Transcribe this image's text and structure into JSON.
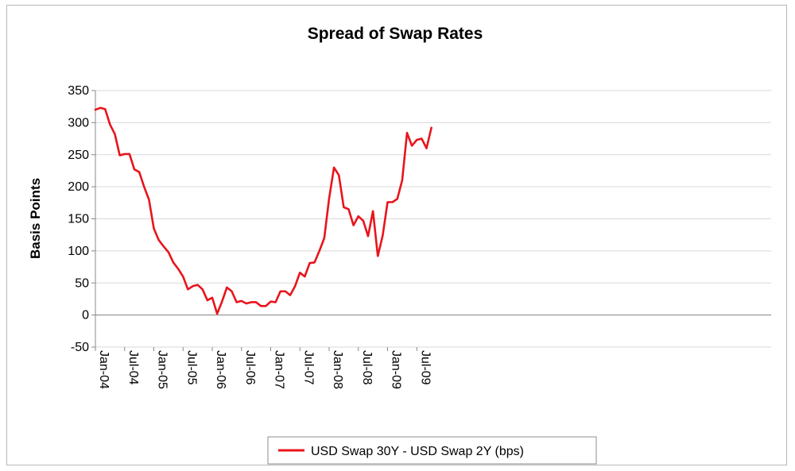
{
  "chart_data": {
    "type": "line",
    "title": "Spread of Swap Rates",
    "ylabel": "Basis Points",
    "xlabel": "",
    "ylim": [
      -50,
      350
    ],
    "yticks": [
      -50,
      0,
      50,
      100,
      150,
      200,
      250,
      300,
      350
    ],
    "xticks": [
      "Jan-04",
      "Jul-04",
      "Jan-05",
      "Jul-05",
      "Jan-06",
      "Jul-06",
      "Jan-07",
      "Jul-07",
      "Jan-08",
      "Jul-08",
      "Jan-09",
      "Jul-09"
    ],
    "grid": true,
    "legend_position": "bottom",
    "series": [
      {
        "name": "USD Swap 30Y - USD Swap 2Y (bps)",
        "color": "#e8141c",
        "x": [
          "Jan-04",
          "Feb-04",
          "Mar-04",
          "Apr-04",
          "May-04",
          "Jun-04",
          "Jul-04",
          "Aug-04",
          "Sep-04",
          "Oct-04",
          "Nov-04",
          "Dec-04",
          "Jan-05",
          "Feb-05",
          "Mar-05",
          "Apr-05",
          "May-05",
          "Jun-05",
          "Jul-05",
          "Aug-05",
          "Sep-05",
          "Oct-05",
          "Nov-05",
          "Dec-05",
          "Jan-06",
          "Feb-06",
          "Mar-06",
          "Apr-06",
          "May-06",
          "Jun-06",
          "Jul-06",
          "Aug-06",
          "Sep-06",
          "Oct-06",
          "Nov-06",
          "Dec-06",
          "Jan-07",
          "Feb-07",
          "Mar-07",
          "Apr-07",
          "May-07",
          "Jun-07",
          "Jul-07",
          "Aug-07",
          "Sep-07",
          "Oct-07",
          "Nov-07",
          "Dec-07",
          "Jan-08",
          "Feb-08",
          "Mar-08",
          "Apr-08",
          "May-08",
          "Jun-08",
          "Jul-08",
          "Aug-08",
          "Sep-08",
          "Oct-08",
          "Nov-08",
          "Dec-08",
          "Jan-09",
          "Feb-09",
          "Mar-09",
          "Apr-09",
          "May-09",
          "Jun-09",
          "Jul-09",
          "Aug-09",
          "Sep-09",
          "Oct-09"
        ],
        "values": [
          320,
          323,
          321,
          297,
          282,
          249,
          251,
          251,
          227,
          223,
          200,
          180,
          135,
          117,
          107,
          98,
          82,
          72,
          60,
          40,
          45,
          47,
          40,
          23,
          27,
          2,
          21,
          43,
          37,
          20,
          22,
          18,
          20,
          20,
          14,
          14,
          21,
          20,
          37,
          37,
          31,
          45,
          66,
          60,
          81,
          82,
          100,
          120,
          182,
          230,
          218,
          168,
          165,
          140,
          154,
          147,
          123,
          162,
          92,
          124,
          176,
          176,
          181,
          210,
          284,
          264,
          273,
          275,
          260,
          292
        ]
      }
    ]
  }
}
